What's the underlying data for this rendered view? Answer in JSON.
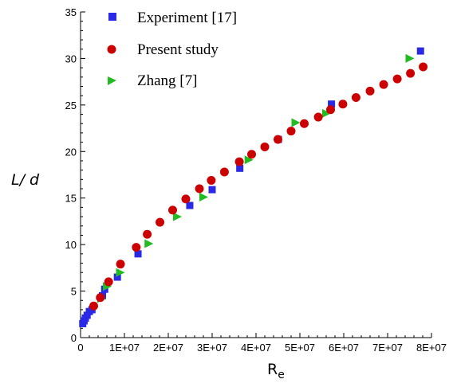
{
  "chart_data": {
    "type": "scatter",
    "title": "",
    "xlabel": "R",
    "xlabel_subscript": "e",
    "ylabel": "L/ d",
    "xlim": [
      0,
      80000000
    ],
    "ylim": [
      0,
      35
    ],
    "grid": false,
    "legend_position": "top-left",
    "x_ticks": [
      {
        "value": 0,
        "label": "0"
      },
      {
        "value": 10000000,
        "label": "1E+07"
      },
      {
        "value": 20000000,
        "label": "2E+07"
      },
      {
        "value": 30000000,
        "label": "3E+07"
      },
      {
        "value": 40000000,
        "label": "4E+07"
      },
      {
        "value": 50000000,
        "label": "5E+07"
      },
      {
        "value": 60000000,
        "label": "6E+07"
      },
      {
        "value": 70000000,
        "label": "7E+07"
      },
      {
        "value": 80000000,
        "label": "8E+07"
      }
    ],
    "y_ticks": [
      {
        "value": 0,
        "label": "0"
      },
      {
        "value": 5,
        "label": "5"
      },
      {
        "value": 10,
        "label": "10"
      },
      {
        "value": 15,
        "label": "15"
      },
      {
        "value": 20,
        "label": "20"
      },
      {
        "value": 25,
        "label": "25"
      },
      {
        "value": 30,
        "label": "30"
      },
      {
        "value": 35,
        "label": "35"
      }
    ],
    "series": [
      {
        "name": "Experiment [17]",
        "marker": "square",
        "color": "#2a2ae6",
        "points": [
          [
            500000,
            1.5
          ],
          [
            800000,
            1.8
          ],
          [
            1100000,
            2.1
          ],
          [
            1500000,
            2.4
          ],
          [
            2000000,
            2.8
          ],
          [
            2600000,
            3.0
          ],
          [
            5000000,
            4.5
          ],
          [
            5500000,
            5.2
          ],
          [
            8400000,
            6.5
          ],
          [
            13100000,
            9.0
          ],
          [
            24900000,
            14.2
          ],
          [
            30000000,
            15.9
          ],
          [
            36300000,
            18.2
          ],
          [
            45100000,
            21.3
          ],
          [
            57200000,
            25.1
          ],
          [
            77500000,
            30.8
          ]
        ]
      },
      {
        "name": "Present study",
        "marker": "circle",
        "color": "#cc0000",
        "points": [
          [
            3000000,
            3.4
          ],
          [
            4500000,
            4.3
          ],
          [
            6400000,
            6.0
          ],
          [
            9100000,
            7.9
          ],
          [
            12700000,
            9.7
          ],
          [
            15200000,
            11.1
          ],
          [
            18100000,
            12.4
          ],
          [
            21000000,
            13.7
          ],
          [
            24000000,
            14.9
          ],
          [
            27100000,
            16.0
          ],
          [
            29800000,
            16.9
          ],
          [
            32800000,
            17.8
          ],
          [
            36200000,
            18.9
          ],
          [
            39000000,
            19.7
          ],
          [
            42000000,
            20.5
          ],
          [
            45000000,
            21.3
          ],
          [
            48000000,
            22.2
          ],
          [
            51000000,
            23.0
          ],
          [
            54200000,
            23.7
          ],
          [
            57000000,
            24.5
          ],
          [
            59800000,
            25.1
          ],
          [
            62800000,
            25.8
          ],
          [
            66000000,
            26.5
          ],
          [
            69100000,
            27.2
          ],
          [
            72200000,
            27.8
          ],
          [
            75200000,
            28.4
          ],
          [
            78100000,
            29.1
          ]
        ]
      },
      {
        "name": "Zhang [7]",
        "marker": "triangle-right",
        "color": "#22bb22",
        "points": [
          [
            4700000,
            4.2
          ],
          [
            6000000,
            5.5
          ],
          [
            9000000,
            7.0
          ],
          [
            15500000,
            10.1
          ],
          [
            22000000,
            13.0
          ],
          [
            28000000,
            15.1
          ],
          [
            38300000,
            19.1
          ],
          [
            49000000,
            23.1
          ],
          [
            56000000,
            24.1
          ],
          [
            75000000,
            30.0
          ]
        ]
      }
    ]
  }
}
